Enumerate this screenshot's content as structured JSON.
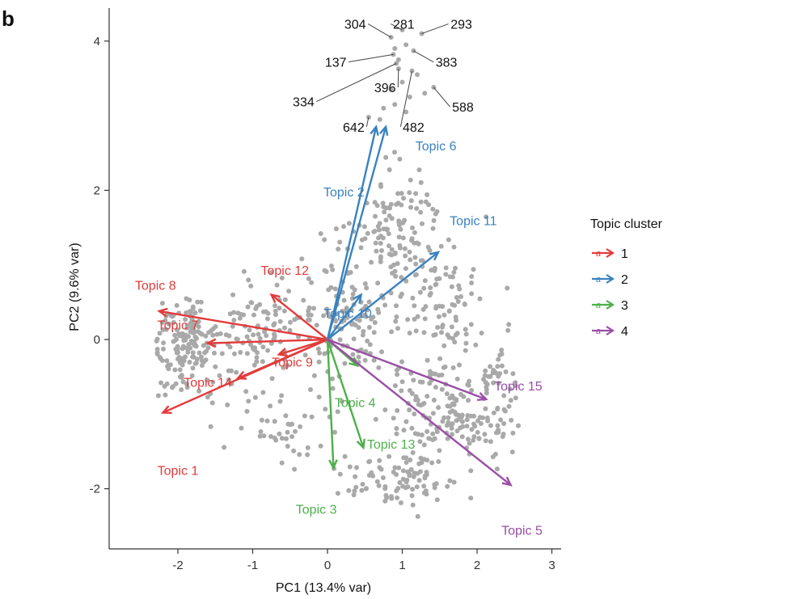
{
  "panel_letter": "b",
  "chart_data": {
    "type": "scatter",
    "subtype": "pca-biplot",
    "xlabel": "PC1 (13.4% var)",
    "ylabel": "PC2 (9.6% var)",
    "xlim": [
      -2.9,
      3.1
    ],
    "ylim": [
      -2.8,
      4.5
    ],
    "xticks": [
      -2,
      -1,
      0,
      1,
      2,
      3
    ],
    "yticks": [
      -2,
      0,
      2,
      4
    ],
    "tick_labels_x": [
      "-2",
      "-1",
      "0",
      "1",
      "2",
      "3"
    ],
    "tick_labels_y": [
      "-2",
      "0",
      "2",
      "4"
    ],
    "grid": false,
    "point_color": "#a9a9a9",
    "cluster_colors": {
      "1": "#e23b3b",
      "2": "#3a82bf",
      "3": "#4db04a",
      "4": "#9a4ea6"
    },
    "legend": {
      "title": "Topic cluster",
      "placement": "right",
      "entries": [
        {
          "label": "1",
          "cluster": "1"
        },
        {
          "label": "2",
          "cluster": "2"
        },
        {
          "label": "3",
          "cluster": "3"
        },
        {
          "label": "4",
          "cluster": "4"
        }
      ]
    },
    "loadings": [
      {
        "name": "Topic 1",
        "cluster": "1",
        "x": -2.2,
        "y": -0.98,
        "label_x": -2.0,
        "label_y": -1.75
      },
      {
        "name": "Topic 7",
        "cluster": "1",
        "x": -1.6,
        "y": -0.05,
        "label_x": -2.0,
        "label_y": 0.2
      },
      {
        "name": "Topic 8",
        "cluster": "1",
        "x": -2.25,
        "y": 0.38,
        "label_x": -2.3,
        "label_y": 0.73
      },
      {
        "name": "Topic 9",
        "cluster": "1",
        "x": -0.65,
        "y": -0.2,
        "label_x": -0.47,
        "label_y": -0.3
      },
      {
        "name": "Topic 12",
        "cluster": "1",
        "x": -0.75,
        "y": 0.6,
        "label_x": -0.57,
        "label_y": 0.93
      },
      {
        "name": "Topic 14",
        "cluster": "1",
        "x": -1.2,
        "y": -0.52,
        "label_x": -1.6,
        "label_y": -0.57
      },
      {
        "name": "Topic 2",
        "cluster": "2",
        "x": 0.65,
        "y": 2.85,
        "label_x": 0.22,
        "label_y": 1.98
      },
      {
        "name": "Topic 6",
        "cluster": "2",
        "x": 0.78,
        "y": 2.85,
        "label_x": 1.45,
        "label_y": 2.6
      },
      {
        "name": "Topic 10",
        "cluster": "2",
        "x": 0.45,
        "y": 0.6,
        "label_x": 0.27,
        "label_y": 0.36
      },
      {
        "name": "Topic 11",
        "cluster": "2",
        "x": 1.48,
        "y": 1.17,
        "label_x": 1.95,
        "label_y": 1.6
      },
      {
        "name": "Topic 3",
        "cluster": "3",
        "x": 0.08,
        "y": -1.72,
        "label_x": -0.15,
        "label_y": -2.27
      },
      {
        "name": "Topic 4",
        "cluster": "3",
        "x": 0.4,
        "y": -0.35,
        "label_x": 0.37,
        "label_y": -0.84
      },
      {
        "name": "Topic 13",
        "cluster": "3",
        "x": 0.48,
        "y": -1.45,
        "label_x": 0.85,
        "label_y": -1.4
      },
      {
        "name": "Topic 5",
        "cluster": "4",
        "x": 2.45,
        "y": -1.95,
        "label_x": 2.6,
        "label_y": -2.55
      },
      {
        "name": "Topic 15",
        "cluster": "4",
        "x": 2.12,
        "y": -0.8,
        "label_x": 2.55,
        "label_y": -0.62
      }
    ],
    "point_annotations": [
      {
        "label": "304",
        "x": 0.85,
        "y": 4.05,
        "label_x": 0.37,
        "label_y": 4.23
      },
      {
        "label": "281",
        "x": 1.0,
        "y": 4.15,
        "label_x": 1.02,
        "label_y": 4.23
      },
      {
        "label": "293",
        "x": 1.26,
        "y": 4.1,
        "label_x": 1.79,
        "label_y": 4.23
      },
      {
        "label": "137",
        "x": 0.88,
        "y": 3.82,
        "label_x": 0.11,
        "label_y": 3.72
      },
      {
        "label": "383",
        "x": 1.15,
        "y": 3.87,
        "label_x": 1.59,
        "label_y": 3.72
      },
      {
        "label": "396",
        "x": 0.95,
        "y": 3.63,
        "label_x": 0.77,
        "label_y": 3.38
      },
      {
        "label": "334",
        "x": 0.92,
        "y": 3.7,
        "label_x": -0.32,
        "label_y": 3.19
      },
      {
        "label": "588",
        "x": 1.42,
        "y": 3.38,
        "label_x": 1.81,
        "label_y": 3.12
      },
      {
        "label": "642",
        "x": 0.55,
        "y": 2.98,
        "label_x": 0.35,
        "label_y": 2.85
      },
      {
        "label": "482",
        "x": 1.13,
        "y": 3.6,
        "label_x": 1.15,
        "label_y": 2.85
      }
    ]
  }
}
